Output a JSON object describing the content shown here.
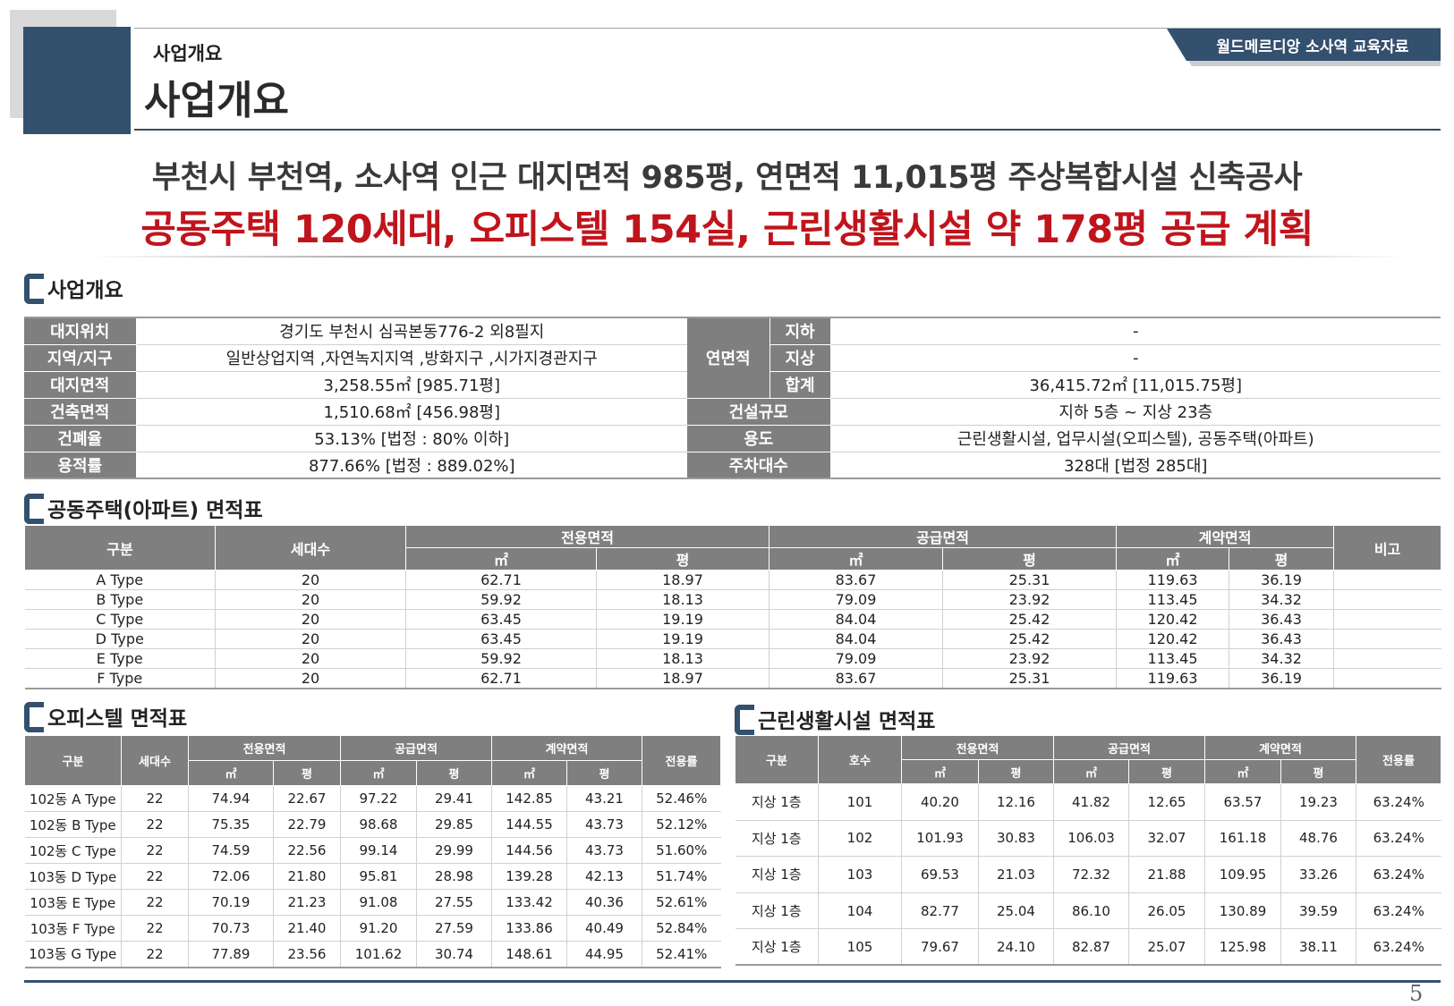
{
  "header": {
    "subtitle": "사업개요",
    "title": "사업개요",
    "badge": "월드메르디앙 소사역 교육자료"
  },
  "headline": {
    "line1": "부천시 부천역, 소사역 인근 대지면적 985평, 연면적 11,015평 주상복합시설 신축공사",
    "line2": "공동주택 120세대, 오피스텔 154실, 근린생활시설 약 178평 공급 계획",
    "line2_color": "#c0141c"
  },
  "overview": {
    "section_title": "사업개요",
    "left": [
      {
        "label": "대지위치",
        "value": "경기도 부천시 심곡본동776-2 외8필지"
      },
      {
        "label": "지역/지구",
        "value": "일반상업지역 ,자연녹지지역 ,방화지구 ,시가지경관지구"
      },
      {
        "label": "대지면적",
        "value": "3,258.55㎡  [985.71평]"
      },
      {
        "label": "건축면적",
        "value": "1,510.68㎡ [456.98평]"
      },
      {
        "label": "건폐율",
        "value": "53.13% [법정 : 80% 이하]"
      },
      {
        "label": "용적률",
        "value": "877.66% [법정 : 889.02%]"
      }
    ],
    "floor_area_label": "연면적",
    "floor_area": [
      {
        "label": "지하",
        "value": "-"
      },
      {
        "label": "지상",
        "value": "-"
      },
      {
        "label": "합계",
        "value": "36,415.72㎡ [11,015.75평]"
      }
    ],
    "right": [
      {
        "label": "건설규모",
        "value": "지하 5층 ~ 지상 23층"
      },
      {
        "label": "용도",
        "value": "근린생활시설, 업무시설(오피스텔), 공동주택(아파트)"
      },
      {
        "label": "주차대수",
        "value": "328대 [법정 285대]"
      }
    ]
  },
  "apartment": {
    "section_title": "공동주택(아파트) 면적표",
    "headers": {
      "type": "구분",
      "units": "세대수",
      "exclusive": "전용면적",
      "supply": "공급면적",
      "contract": "계약면적",
      "note": "비고",
      "sqm": "㎡",
      "pyeong": "평"
    },
    "rows": [
      [
        "A Type",
        "20",
        "62.71",
        "18.97",
        "83.67",
        "25.31",
        "119.63",
        "36.19",
        ""
      ],
      [
        "B Type",
        "20",
        "59.92",
        "18.13",
        "79.09",
        "23.92",
        "113.45",
        "34.32",
        ""
      ],
      [
        "C Type",
        "20",
        "63.45",
        "19.19",
        "84.04",
        "25.42",
        "120.42",
        "36.43",
        ""
      ],
      [
        "D Type",
        "20",
        "63.45",
        "19.19",
        "84.04",
        "25.42",
        "120.42",
        "36.43",
        ""
      ],
      [
        "E Type",
        "20",
        "59.92",
        "18.13",
        "79.09",
        "23.92",
        "113.45",
        "34.32",
        ""
      ],
      [
        "F Type",
        "20",
        "62.71",
        "18.97",
        "83.67",
        "25.31",
        "119.63",
        "36.19",
        ""
      ]
    ]
  },
  "officetel": {
    "section_title": "오피스텔 면적표",
    "headers": {
      "type": "구분",
      "units": "세대수",
      "exclusive": "전용면적",
      "supply": "공급면적",
      "contract": "계약면적",
      "ratio": "전용률",
      "sqm": "㎡",
      "pyeong": "평"
    },
    "rows": [
      [
        "102동 A Type",
        "22",
        "74.94",
        "22.67",
        "97.22",
        "29.41",
        "142.85",
        "43.21",
        "52.46%"
      ],
      [
        "102동 B Type",
        "22",
        "75.35",
        "22.79",
        "98.68",
        "29.85",
        "144.55",
        "43.73",
        "52.12%"
      ],
      [
        "102동 C Type",
        "22",
        "74.59",
        "22.56",
        "99.14",
        "29.99",
        "144.56",
        "43.73",
        "51.60%"
      ],
      [
        "103동 D Type",
        "22",
        "72.06",
        "21.80",
        "95.81",
        "28.98",
        "139.28",
        "42.13",
        "51.74%"
      ],
      [
        "103동 E Type",
        "22",
        "70.19",
        "21.23",
        "91.08",
        "27.55",
        "133.42",
        "40.36",
        "52.61%"
      ],
      [
        "103동 F Type",
        "22",
        "70.73",
        "21.40",
        "91.20",
        "27.59",
        "133.86",
        "40.49",
        "52.84%"
      ],
      [
        "103동 G Type",
        "22",
        "77.89",
        "23.56",
        "101.62",
        "30.74",
        "148.61",
        "44.95",
        "52.41%"
      ]
    ]
  },
  "retail": {
    "section_title": "근린생활시설 면적표",
    "headers": {
      "type": "구분",
      "unit_no": "호수",
      "exclusive": "전용면적",
      "supply": "공급면적",
      "contract": "계약면적",
      "ratio": "전용률",
      "sqm": "㎡",
      "pyeong": "평"
    },
    "rows": [
      [
        "지상 1층",
        "101",
        "40.20",
        "12.16",
        "41.82",
        "12.65",
        "63.57",
        "19.23",
        "63.24%"
      ],
      [
        "지상 1층",
        "102",
        "101.93",
        "30.83",
        "106.03",
        "32.07",
        "161.18",
        "48.76",
        "63.24%"
      ],
      [
        "지상 1층",
        "103",
        "69.53",
        "21.03",
        "72.32",
        "21.88",
        "109.95",
        "33.26",
        "63.24%"
      ],
      [
        "지상 1층",
        "104",
        "82.77",
        "25.04",
        "86.10",
        "26.05",
        "130.89",
        "39.59",
        "63.24%"
      ],
      [
        "지상 1층",
        "105",
        "79.67",
        "24.10",
        "82.87",
        "25.07",
        "125.98",
        "38.11",
        "63.24%"
      ]
    ]
  },
  "footer": {
    "page_number": "5"
  }
}
